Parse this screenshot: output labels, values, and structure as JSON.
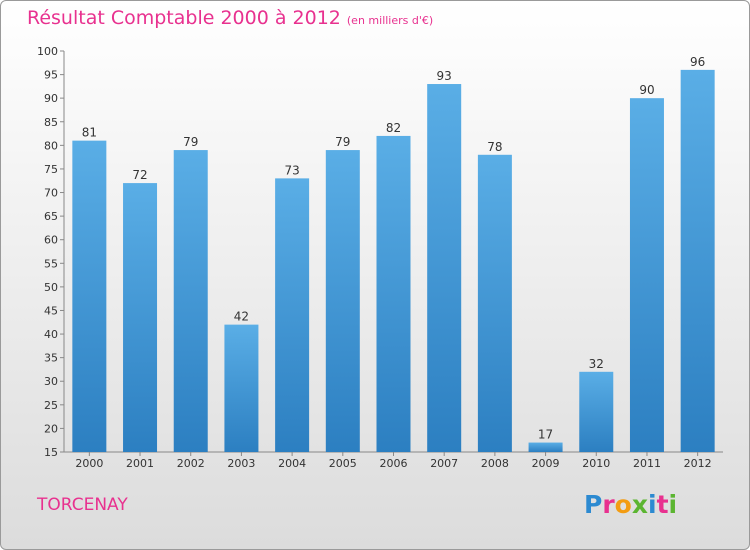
{
  "title": "Résultat Comptable 2000 à 2012",
  "subtitle": "(en milliers d'€)",
  "commune": "TORCENAY",
  "logo": {
    "text": "Proxiti",
    "colors": [
      "#2c8ad1",
      "#e8318f",
      "#f39c12",
      "#5bb531",
      "#2c8ad1",
      "#e8318f",
      "#5bb531"
    ]
  },
  "colors": {
    "title": "#e8318f",
    "bar_light": "#5aaee6",
    "bar_dark": "#2c7fc1",
    "axis": "#888888"
  },
  "chart_data": {
    "type": "bar",
    "categories": [
      "2000",
      "2001",
      "2002",
      "2003",
      "2004",
      "2005",
      "2006",
      "2007",
      "2008",
      "2009",
      "2010",
      "2011",
      "2012"
    ],
    "values": [
      81,
      72,
      79,
      42,
      73,
      79,
      82,
      93,
      78,
      17,
      32,
      90,
      96
    ],
    "title": "Résultat Comptable 2000 à 2012",
    "ylim": [
      15,
      100
    ],
    "yticks": [
      15,
      20,
      25,
      30,
      35,
      40,
      45,
      50,
      55,
      60,
      65,
      70,
      75,
      80,
      85,
      90,
      95,
      100
    ],
    "grid": false,
    "legend": "none"
  }
}
